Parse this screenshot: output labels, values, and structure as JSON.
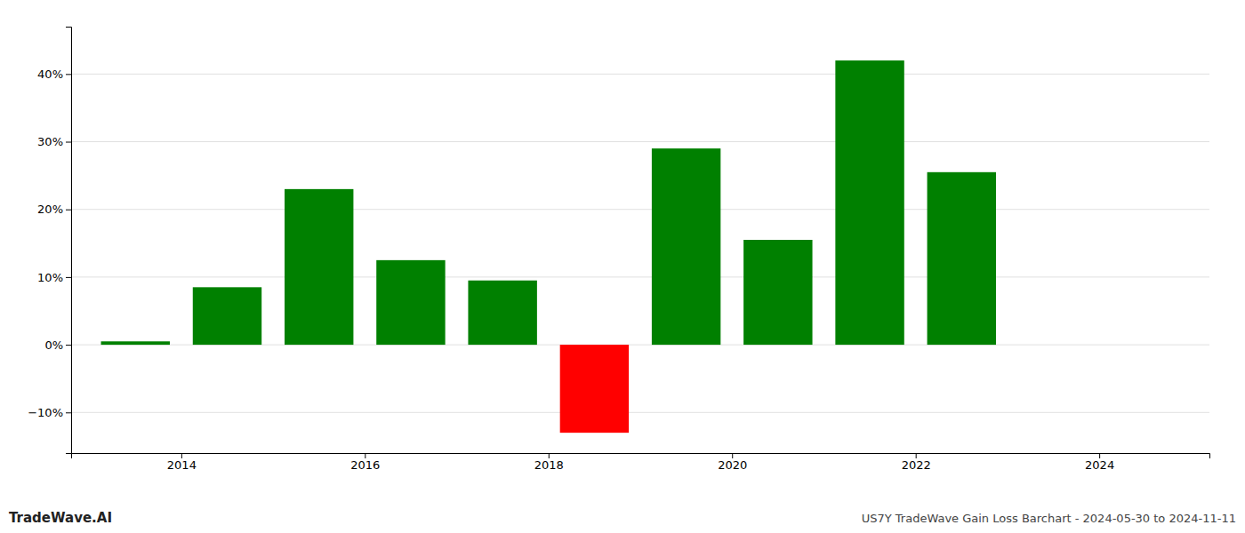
{
  "chart_data": {
    "type": "bar",
    "x": [
      2013.5,
      2014.5,
      2015.5,
      2016.5,
      2017.5,
      2018.5,
      2019.5,
      2020.5,
      2021.5,
      2022.5
    ],
    "values": [
      0.5,
      8.5,
      23.0,
      12.5,
      9.5,
      -13.0,
      29.0,
      15.5,
      42.0,
      25.5
    ],
    "colors": [
      "#008000",
      "#008000",
      "#008000",
      "#008000",
      "#008000",
      "#ff0000",
      "#008000",
      "#008000",
      "#008000",
      "#008000"
    ],
    "xlim": [
      2012.8,
      2025.2
    ],
    "xticks": [
      2014,
      2016,
      2018,
      2020,
      2022,
      2024
    ],
    "ylim": [
      -16,
      47
    ],
    "yticks": [
      {
        "value": -10,
        "label": "−10%"
      },
      {
        "value": 0,
        "label": "0%"
      },
      {
        "value": 10,
        "label": "10%"
      },
      {
        "value": 20,
        "label": "20%"
      },
      {
        "value": 30,
        "label": "30%"
      },
      {
        "value": 40,
        "label": "40%"
      }
    ],
    "grid": true,
    "annotations": [
      "TradeWave.AI",
      "US7Y TradeWave Gain Loss Barchart - 2024-05-30 to 2024-11-11"
    ]
  }
}
